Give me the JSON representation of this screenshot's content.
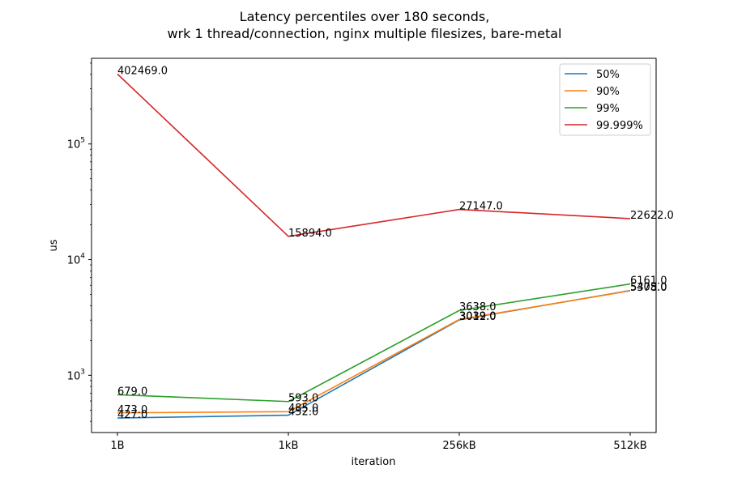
{
  "chart_data": {
    "type": "line",
    "title": "Latency percentiles over 180 seconds,",
    "subtitle": "wrk 1 thread/connection, nginx multiple filesizes, bare-metal",
    "xlabel": "iteration",
    "ylabel": "us",
    "yscale": "log",
    "ylim": [
      320,
      550000
    ],
    "y_ticks": [
      {
        "value": 1000,
        "base": "10",
        "exp": "3"
      },
      {
        "value": 10000,
        "base": "10",
        "exp": "4"
      },
      {
        "value": 100000,
        "base": "10",
        "exp": "5"
      }
    ],
    "categories": [
      "1B",
      "1kB",
      "256kB",
      "512kB"
    ],
    "series": [
      {
        "name": "50%",
        "color": "#1f77b4",
        "values": [
          427.0,
          452.0,
          3012.0,
          5405.0
        ],
        "labels": [
          "427.0",
          "452.0",
          "3012.0",
          "5405.0"
        ]
      },
      {
        "name": "90%",
        "color": "#ff7f0e",
        "values": [
          473.0,
          485.0,
          3039.0,
          5378.0
        ],
        "labels": [
          "473.0",
          "485.0",
          "3039.0",
          "5378.0"
        ]
      },
      {
        "name": "99%",
        "color": "#2ca02c",
        "values": [
          679.0,
          593.0,
          3638.0,
          6161.0
        ],
        "labels": [
          "679.0",
          "593.0",
          "3638.0",
          "6161.0"
        ]
      },
      {
        "name": "99.999%",
        "color": "#d62728",
        "values": [
          402469.0,
          15894.0,
          27147.0,
          22622.0
        ],
        "labels": [
          "402469.0",
          "15894.0",
          "27147.0",
          "22622.0"
        ]
      }
    ],
    "grid": false,
    "legend_position": "top-right"
  }
}
